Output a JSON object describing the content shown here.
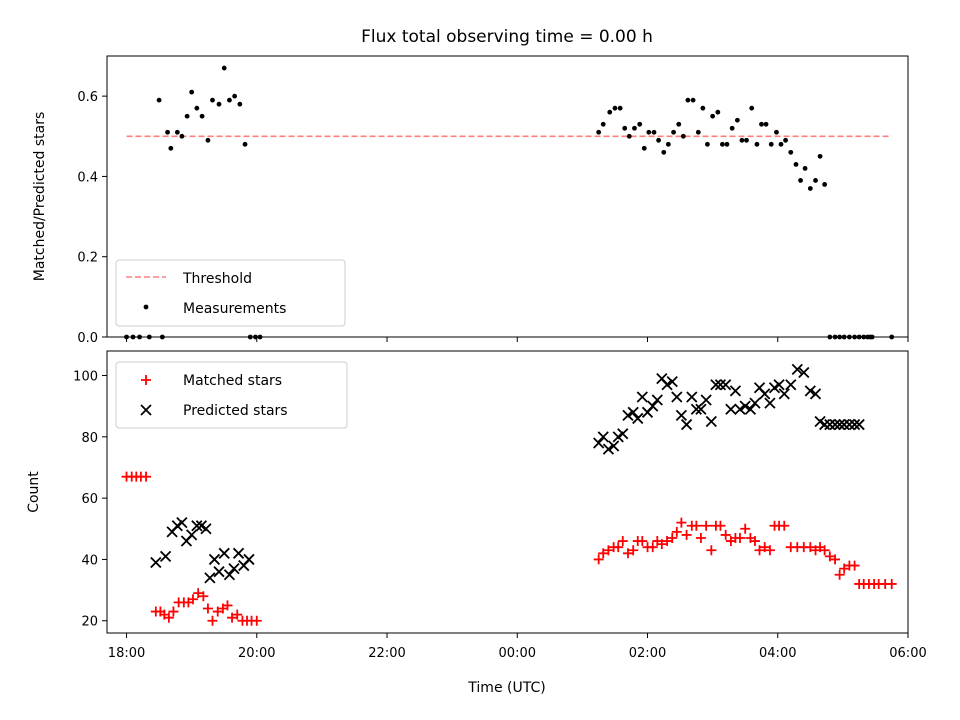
{
  "title": "Flux total observing time = 0.00 h",
  "xlabel": "Time (UTC)",
  "colors": {
    "threshold": "#ff7f7f",
    "measurements": "#000000",
    "matched": "#ff0000",
    "predicted": "#000000"
  },
  "chart_data": [
    {
      "type": "scatter",
      "title": "Flux total observing time = 0.00 h",
      "ylabel": "Matched/Predicted stars",
      "ylim": [
        0,
        0.7
      ],
      "yticks": [
        0.0,
        0.2,
        0.4,
        0.6
      ],
      "ytick_labels": [
        "0.0",
        "0.2",
        "0.4",
        "0.6"
      ],
      "xlim": [
        -0.3,
        12.0
      ],
      "legend_position": "lower-left",
      "threshold": {
        "name": "Threshold",
        "value": 0.5,
        "x": [
          0.0,
          11.75
        ]
      },
      "series": [
        {
          "name": "Measurements",
          "x": [
            0.0,
            0.1,
            0.2,
            0.35,
            0.5,
            0.55,
            0.63,
            0.68,
            0.78,
            0.85,
            0.93,
            1.0,
            1.08,
            1.16,
            1.25,
            1.32,
            1.42,
            1.5,
            1.58,
            1.66,
            1.74,
            1.82,
            1.9,
            1.98,
            2.05,
            7.25,
            7.32,
            7.42,
            7.5,
            7.58,
            7.65,
            7.72,
            7.8,
            7.88,
            7.95,
            8.02,
            8.1,
            8.17,
            8.25,
            8.32,
            8.4,
            8.48,
            8.55,
            8.62,
            8.7,
            8.78,
            8.85,
            8.92,
            9.0,
            9.08,
            9.15,
            9.22,
            9.3,
            9.38,
            9.45,
            9.52,
            9.6,
            9.68,
            9.75,
            9.82,
            9.9,
            9.98,
            10.05,
            10.12,
            10.2,
            10.28,
            10.35,
            10.42,
            10.5,
            10.58,
            10.65,
            10.72,
            10.8,
            10.88,
            10.95,
            11.02,
            11.1,
            11.18,
            11.25,
            11.32,
            11.38,
            11.42,
            11.45,
            11.75
          ],
          "y": [
            0,
            0,
            0,
            0,
            0.59,
            0,
            0.51,
            0.47,
            0.51,
            0.5,
            0.55,
            0.61,
            0.57,
            0.55,
            0.49,
            0.59,
            0.58,
            0.67,
            0.59,
            0.6,
            0.58,
            0.48,
            0,
            0,
            0,
            0.51,
            0.53,
            0.56,
            0.57,
            0.57,
            0.52,
            0.5,
            0.52,
            0.53,
            0.47,
            0.51,
            0.51,
            0.49,
            0.46,
            0.48,
            0.51,
            0.53,
            0.5,
            0.59,
            0.59,
            0.51,
            0.57,
            0.48,
            0.55,
            0.56,
            0.48,
            0.48,
            0.52,
            0.54,
            0.49,
            0.49,
            0.57,
            0.48,
            0.53,
            0.53,
            0.48,
            0.51,
            0.48,
            0.49,
            0.46,
            0.43,
            0.39,
            0.42,
            0.37,
            0.39,
            0.45,
            0.38,
            0,
            0,
            0,
            0,
            0,
            0,
            0,
            0,
            0,
            0,
            0,
            0
          ]
        }
      ]
    },
    {
      "type": "scatter",
      "ylabel": "Count",
      "xlabel": "Time (UTC)",
      "ylim": [
        16,
        108
      ],
      "yticks": [
        20,
        40,
        60,
        80,
        100
      ],
      "ytick_labels": [
        "20",
        "40",
        "60",
        "80",
        "100"
      ],
      "xlim": [
        -0.3,
        12.0
      ],
      "xticks": [
        0,
        2,
        4,
        6,
        8,
        10,
        12
      ],
      "xtick_labels": [
        "18:00",
        "20:00",
        "22:00",
        "00:00",
        "02:00",
        "04:00",
        "06:00"
      ],
      "legend_position": "upper-left",
      "series": [
        {
          "name": "Matched stars",
          "marker": "plus",
          "x": [
            0.0,
            0.08,
            0.15,
            0.22,
            0.3,
            0.45,
            0.52,
            0.58,
            0.65,
            0.72,
            0.8,
            0.88,
            0.95,
            1.02,
            1.1,
            1.18,
            1.25,
            1.32,
            1.4,
            1.48,
            1.55,
            1.62,
            1.7,
            1.78,
            1.85,
            1.92,
            2.0,
            7.25,
            7.32,
            7.4,
            7.48,
            7.55,
            7.62,
            7.7,
            7.78,
            7.85,
            7.92,
            8.0,
            8.08,
            8.15,
            8.22,
            8.3,
            8.38,
            8.45,
            8.52,
            8.6,
            8.68,
            8.75,
            8.82,
            8.9,
            8.98,
            9.05,
            9.12,
            9.2,
            9.28,
            9.35,
            9.42,
            9.5,
            9.58,
            9.65,
            9.72,
            9.8,
            9.88,
            9.95,
            10.02,
            10.1,
            10.2,
            10.3,
            10.4,
            10.5,
            10.58,
            10.65,
            10.72,
            10.8,
            10.88,
            10.95,
            11.02,
            11.1,
            11.18,
            11.25,
            11.32,
            11.4,
            11.48,
            11.55,
            11.65,
            11.75
          ],
          "y": [
            67,
            67,
            67,
            67,
            67,
            23,
            23,
            22,
            21,
            23,
            26,
            26,
            26,
            27,
            29,
            28,
            24,
            20,
            23,
            24,
            25,
            21,
            22,
            20,
            20,
            20,
            20,
            40,
            42,
            43,
            44,
            44,
            46,
            42,
            43,
            46,
            46,
            44,
            44,
            46,
            45,
            46,
            47,
            49,
            52,
            48,
            51,
            51,
            47,
            51,
            43,
            51,
            51,
            48,
            46,
            47,
            47,
            50,
            47,
            46,
            43,
            44,
            43,
            51,
            51,
            51,
            44,
            44,
            44,
            44,
            43,
            44,
            43,
            41,
            40,
            35,
            37,
            38,
            38,
            32,
            32,
            32,
            32,
            32,
            32,
            32
          ],
          "note": ""
        },
        {
          "name": "Predicted stars",
          "marker": "x",
          "x": [
            0.45,
            0.6,
            0.7,
            0.78,
            0.85,
            0.92,
            1.0,
            1.08,
            1.15,
            1.22,
            1.28,
            1.35,
            1.42,
            1.5,
            1.58,
            1.65,
            1.72,
            1.8,
            1.88,
            7.25,
            7.32,
            7.4,
            7.48,
            7.55,
            7.62,
            7.7,
            7.78,
            7.85,
            7.92,
            8.0,
            8.08,
            8.15,
            8.22,
            8.3,
            8.38,
            8.45,
            8.52,
            8.6,
            8.68,
            8.75,
            8.82,
            8.9,
            8.98,
            9.05,
            9.12,
            9.2,
            9.28,
            9.35,
            9.42,
            9.5,
            9.58,
            9.65,
            9.72,
            9.8,
            9.88,
            9.95,
            10.02,
            10.1,
            10.2,
            10.3,
            10.4,
            10.5,
            10.58,
            10.65,
            10.72,
            10.8,
            10.88,
            10.95,
            11.02,
            11.1,
            11.18,
            11.25
          ],
          "y": [
            39,
            41,
            49,
            51,
            52,
            46,
            48,
            51,
            51,
            50,
            34,
            40,
            36,
            42,
            35,
            37,
            42,
            38,
            40,
            78,
            80,
            76,
            77,
            80,
            81,
            87,
            88,
            86,
            93,
            88,
            90,
            92,
            99,
            97,
            98,
            93,
            87,
            84,
            93,
            89,
            89,
            92,
            85,
            97,
            97,
            97,
            89,
            95,
            89,
            90,
            89,
            91,
            96,
            94,
            91,
            96,
            97,
            94,
            97,
            102,
            101,
            95,
            94,
            85,
            84,
            84,
            84,
            84,
            84,
            84,
            84,
            84
          ],
          "note": ""
        }
      ]
    }
  ]
}
